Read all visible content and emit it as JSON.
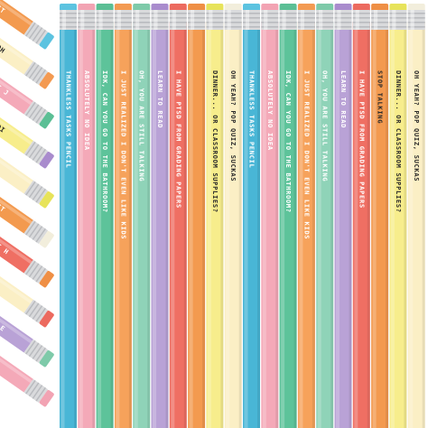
{
  "image": {
    "type": "product-photo",
    "background": "#ffffff",
    "ferrule_color": "#d9dadc",
    "text_light": "#ffffff",
    "text_dark": "#2b2b2b",
    "upright_pencils": [
      {
        "color": "#49b6d6",
        "eraser": "#5cc3e0",
        "text": "THANKLESS TASKS PENCIL",
        "text_tone": "light"
      },
      {
        "color": "#f4a9b8",
        "eraser": "#f2a3b3",
        "text": "ABSOLUTELY NO IDEA",
        "text_tone": "light"
      },
      {
        "color": "#5dc39a",
        "eraser": "#5bbf95",
        "text": "IDK, CAN YOU GO TO THE BATHROOM?",
        "text_tone": "light"
      },
      {
        "color": "#f6a25b",
        "eraser": "#f39a52",
        "text": "I JUST REALIZED I DON'T EVEN LIKE KIDS",
        "text_tone": "light"
      },
      {
        "color": "#8fd3b8",
        "eraser": "#7ecaa9",
        "text": "OH, YOU ARE STILL TALKING",
        "text_tone": "light"
      },
      {
        "color": "#b9a2d6",
        "eraser": "#a98ccd",
        "text": "LEARN TO READ",
        "text_tone": "light"
      },
      {
        "color": "#ef6f63",
        "eraser": "#ec6a5f",
        "text": "I HAVE PTSD FROM GRADING PAPERS",
        "text_tone": "light"
      },
      {
        "color": "#f39a4f",
        "eraser": "#ef8f45",
        "text": "",
        "text_tone": "light"
      },
      {
        "color": "#f7ed8c",
        "eraser": "#e7e35a",
        "text": "DINNER... OR CLASSROOM SUPPLIES?",
        "text_tone": "dark"
      },
      {
        "color": "#fbefc5",
        "eraser": "#f2eedc",
        "text": "OH YEAH? POP QUIZ, SUCKAS",
        "text_tone": "dark"
      },
      {
        "color": "#49b6d6",
        "eraser": "#5cc3e0",
        "text": "THANKLESS TASKS PENCIL",
        "text_tone": "light"
      },
      {
        "color": "#f4a9b8",
        "eraser": "#f2a3b3",
        "text": "ABSOLUTELY NO IDEA",
        "text_tone": "light"
      },
      {
        "color": "#5dc39a",
        "eraser": "#5bbf95",
        "text": "IDK, CAN YOU GO TO THE BATHROOM?",
        "text_tone": "light"
      },
      {
        "color": "#f6a25b",
        "eraser": "#f39a52",
        "text": "I JUST REALIZED I DON'T EVEN LIKE KIDS",
        "text_tone": "light"
      },
      {
        "color": "#8fd3b8",
        "eraser": "#7ecaa9",
        "text": "OH, YOU ARE STILL TALKING",
        "text_tone": "light"
      },
      {
        "color": "#b9a2d6",
        "eraser": "#a98ccd",
        "text": "LEARN TO READ",
        "text_tone": "light"
      },
      {
        "color": "#ef6f63",
        "eraser": "#ec6a5f",
        "text": "I HAVE PTSD FROM GRADING PAPERS",
        "text_tone": "light"
      },
      {
        "color": "#f39a4f",
        "eraser": "#ef8f45",
        "text": "STOP TALKING",
        "text_tone": "dark"
      },
      {
        "color": "#f7ed8c",
        "eraser": "#e7e35a",
        "text": "DINNER... OR CLASSROOM SUPPLIES?",
        "text_tone": "dark"
      },
      {
        "color": "#fbefc5",
        "eraser": "#f2eedc",
        "text": "OH YEAH? POP QUIZ, SUCKAS",
        "text_tone": "dark"
      }
    ],
    "tilted_pencils": [
      {
        "color": "#f39a4f",
        "eraser": "#5cc3e0",
        "text": "ST"
      },
      {
        "color": "#fbefc5",
        "eraser": "#f39a52",
        "text": "OH"
      },
      {
        "color": "#f4a9b8",
        "eraser": "#5bbf95",
        "text": "I J"
      },
      {
        "color": "#f7ed8c",
        "eraser": "#a98ccd",
        "text": "DI"
      },
      {
        "color": "#fbefc5",
        "eraser": "#e7e35a",
        "text": ""
      },
      {
        "color": "#f39a4f",
        "eraser": "#f2eedc",
        "text": "ST"
      },
      {
        "color": "#ef6f63",
        "eraser": "#ef8f45",
        "text": "I H"
      },
      {
        "color": "#fbefc5",
        "eraser": "#ec6a5f",
        "text": ""
      },
      {
        "color": "#b9a2d6",
        "eraser": "#7ecaa9",
        "text": "LE"
      },
      {
        "color": "#f4a9b8",
        "eraser": "#f2a3b3",
        "text": ""
      }
    ]
  }
}
